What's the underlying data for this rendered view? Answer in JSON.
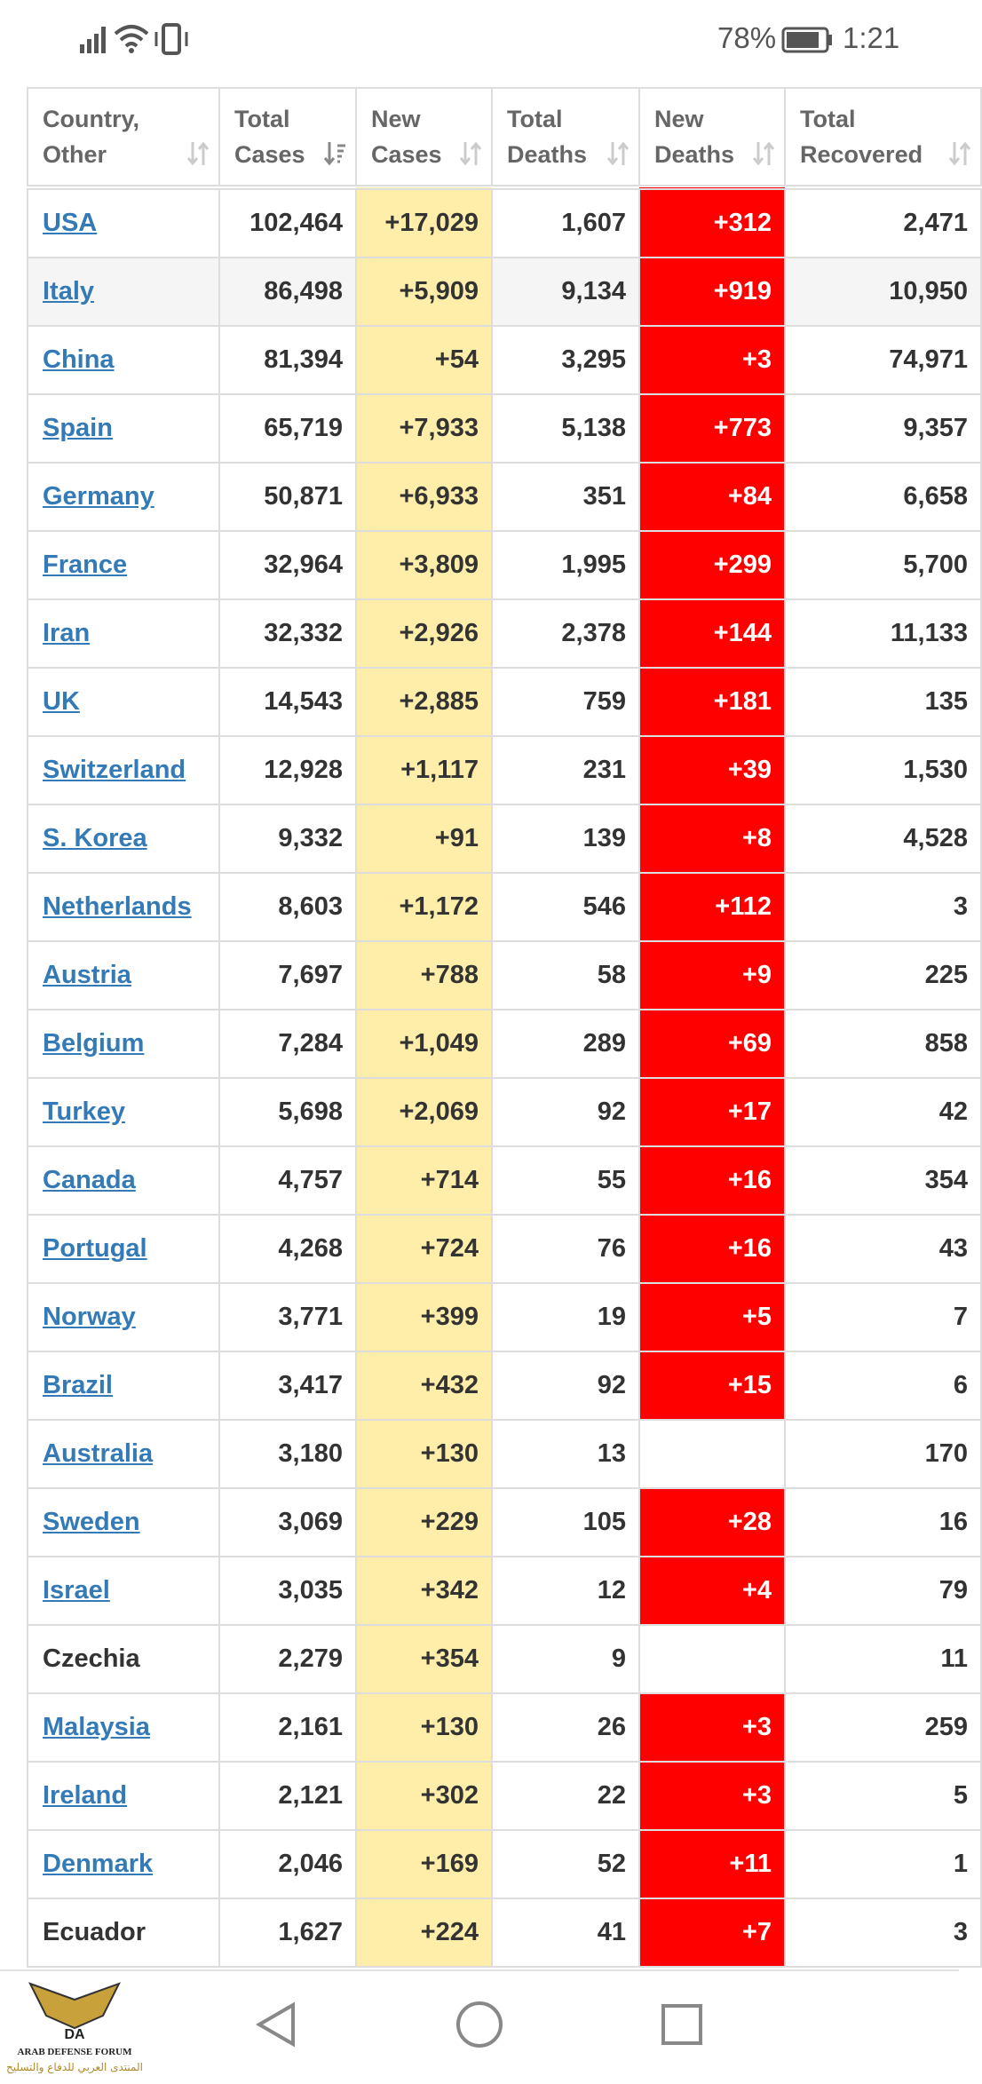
{
  "status_bar": {
    "battery": "78%",
    "time": "1:21"
  },
  "table": {
    "headers": [
      [
        "Country,",
        "Other"
      ],
      [
        "Total",
        "Cases"
      ],
      [
        "New",
        "Cases"
      ],
      [
        "Total",
        "Deaths"
      ],
      [
        "New",
        "Deaths"
      ],
      [
        "Total",
        "Recovered"
      ]
    ],
    "rows": [
      {
        "link": true,
        "highlight": false,
        "cells": [
          "USA",
          "102,464",
          "+17,029",
          "1,607",
          "+312",
          "2,471"
        ]
      },
      {
        "link": true,
        "highlight": true,
        "cells": [
          "Italy",
          "86,498",
          "+5,909",
          "9,134",
          "+919",
          "10,950"
        ]
      },
      {
        "link": true,
        "highlight": false,
        "cells": [
          "China",
          "81,394",
          "+54",
          "3,295",
          "+3",
          "74,971"
        ]
      },
      {
        "link": true,
        "highlight": false,
        "cells": [
          "Spain",
          "65,719",
          "+7,933",
          "5,138",
          "+773",
          "9,357"
        ]
      },
      {
        "link": true,
        "highlight": false,
        "cells": [
          "Germany",
          "50,871",
          "+6,933",
          "351",
          "+84",
          "6,658"
        ]
      },
      {
        "link": true,
        "highlight": false,
        "cells": [
          "France",
          "32,964",
          "+3,809",
          "1,995",
          "+299",
          "5,700"
        ]
      },
      {
        "link": true,
        "highlight": false,
        "cells": [
          "Iran",
          "32,332",
          "+2,926",
          "2,378",
          "+144",
          "11,133"
        ]
      },
      {
        "link": true,
        "highlight": false,
        "cells": [
          "UK",
          "14,543",
          "+2,885",
          "759",
          "+181",
          "135"
        ]
      },
      {
        "link": true,
        "highlight": false,
        "cells": [
          "Switzerland",
          "12,928",
          "+1,117",
          "231",
          "+39",
          "1,530"
        ]
      },
      {
        "link": true,
        "highlight": false,
        "cells": [
          "S. Korea",
          "9,332",
          "+91",
          "139",
          "+8",
          "4,528"
        ]
      },
      {
        "link": true,
        "highlight": false,
        "cells": [
          "Netherlands",
          "8,603",
          "+1,172",
          "546",
          "+112",
          "3"
        ]
      },
      {
        "link": true,
        "highlight": false,
        "cells": [
          "Austria",
          "7,697",
          "+788",
          "58",
          "+9",
          "225"
        ]
      },
      {
        "link": true,
        "highlight": false,
        "cells": [
          "Belgium",
          "7,284",
          "+1,049",
          "289",
          "+69",
          "858"
        ]
      },
      {
        "link": true,
        "highlight": false,
        "cells": [
          "Turkey",
          "5,698",
          "+2,069",
          "92",
          "+17",
          "42"
        ]
      },
      {
        "link": true,
        "highlight": false,
        "cells": [
          "Canada",
          "4,757",
          "+714",
          "55",
          "+16",
          "354"
        ]
      },
      {
        "link": true,
        "highlight": false,
        "cells": [
          "Portugal",
          "4,268",
          "+724",
          "76",
          "+16",
          "43"
        ]
      },
      {
        "link": true,
        "highlight": false,
        "cells": [
          "Norway",
          "3,771",
          "+399",
          "19",
          "+5",
          "7"
        ]
      },
      {
        "link": true,
        "highlight": false,
        "cells": [
          "Brazil",
          "3,417",
          "+432",
          "92",
          "+15",
          "6"
        ]
      },
      {
        "link": true,
        "highlight": false,
        "cells": [
          "Australia",
          "3,180",
          "+130",
          "13",
          null,
          "170"
        ]
      },
      {
        "link": true,
        "highlight": false,
        "cells": [
          "Sweden",
          "3,069",
          "+229",
          "105",
          "+28",
          "16"
        ]
      },
      {
        "link": true,
        "highlight": false,
        "cells": [
          "Israel",
          "3,035",
          "+342",
          "12",
          "+4",
          "79"
        ]
      },
      {
        "link": false,
        "highlight": false,
        "cells": [
          "Czechia",
          "2,279",
          "+354",
          "9",
          null,
          "11"
        ]
      },
      {
        "link": true,
        "highlight": false,
        "cells": [
          "Malaysia",
          "2,161",
          "+130",
          "26",
          "+3",
          "259"
        ]
      },
      {
        "link": true,
        "highlight": false,
        "cells": [
          "Ireland",
          "2,121",
          "+302",
          "22",
          "+3",
          "5"
        ]
      },
      {
        "link": true,
        "highlight": false,
        "cells": [
          "Denmark",
          "2,046",
          "+169",
          "52",
          "+11",
          "1"
        ]
      },
      {
        "link": false,
        "highlight": false,
        "cells": [
          "Ecuador",
          "1,627",
          "+224",
          "41",
          "+7",
          "3"
        ]
      }
    ]
  },
  "watermark": {
    "badge": "DA",
    "name": "ARAB DEFENSE FORUM",
    "subtitle": "المنتدى العربي للدفاع والتسليح"
  }
}
